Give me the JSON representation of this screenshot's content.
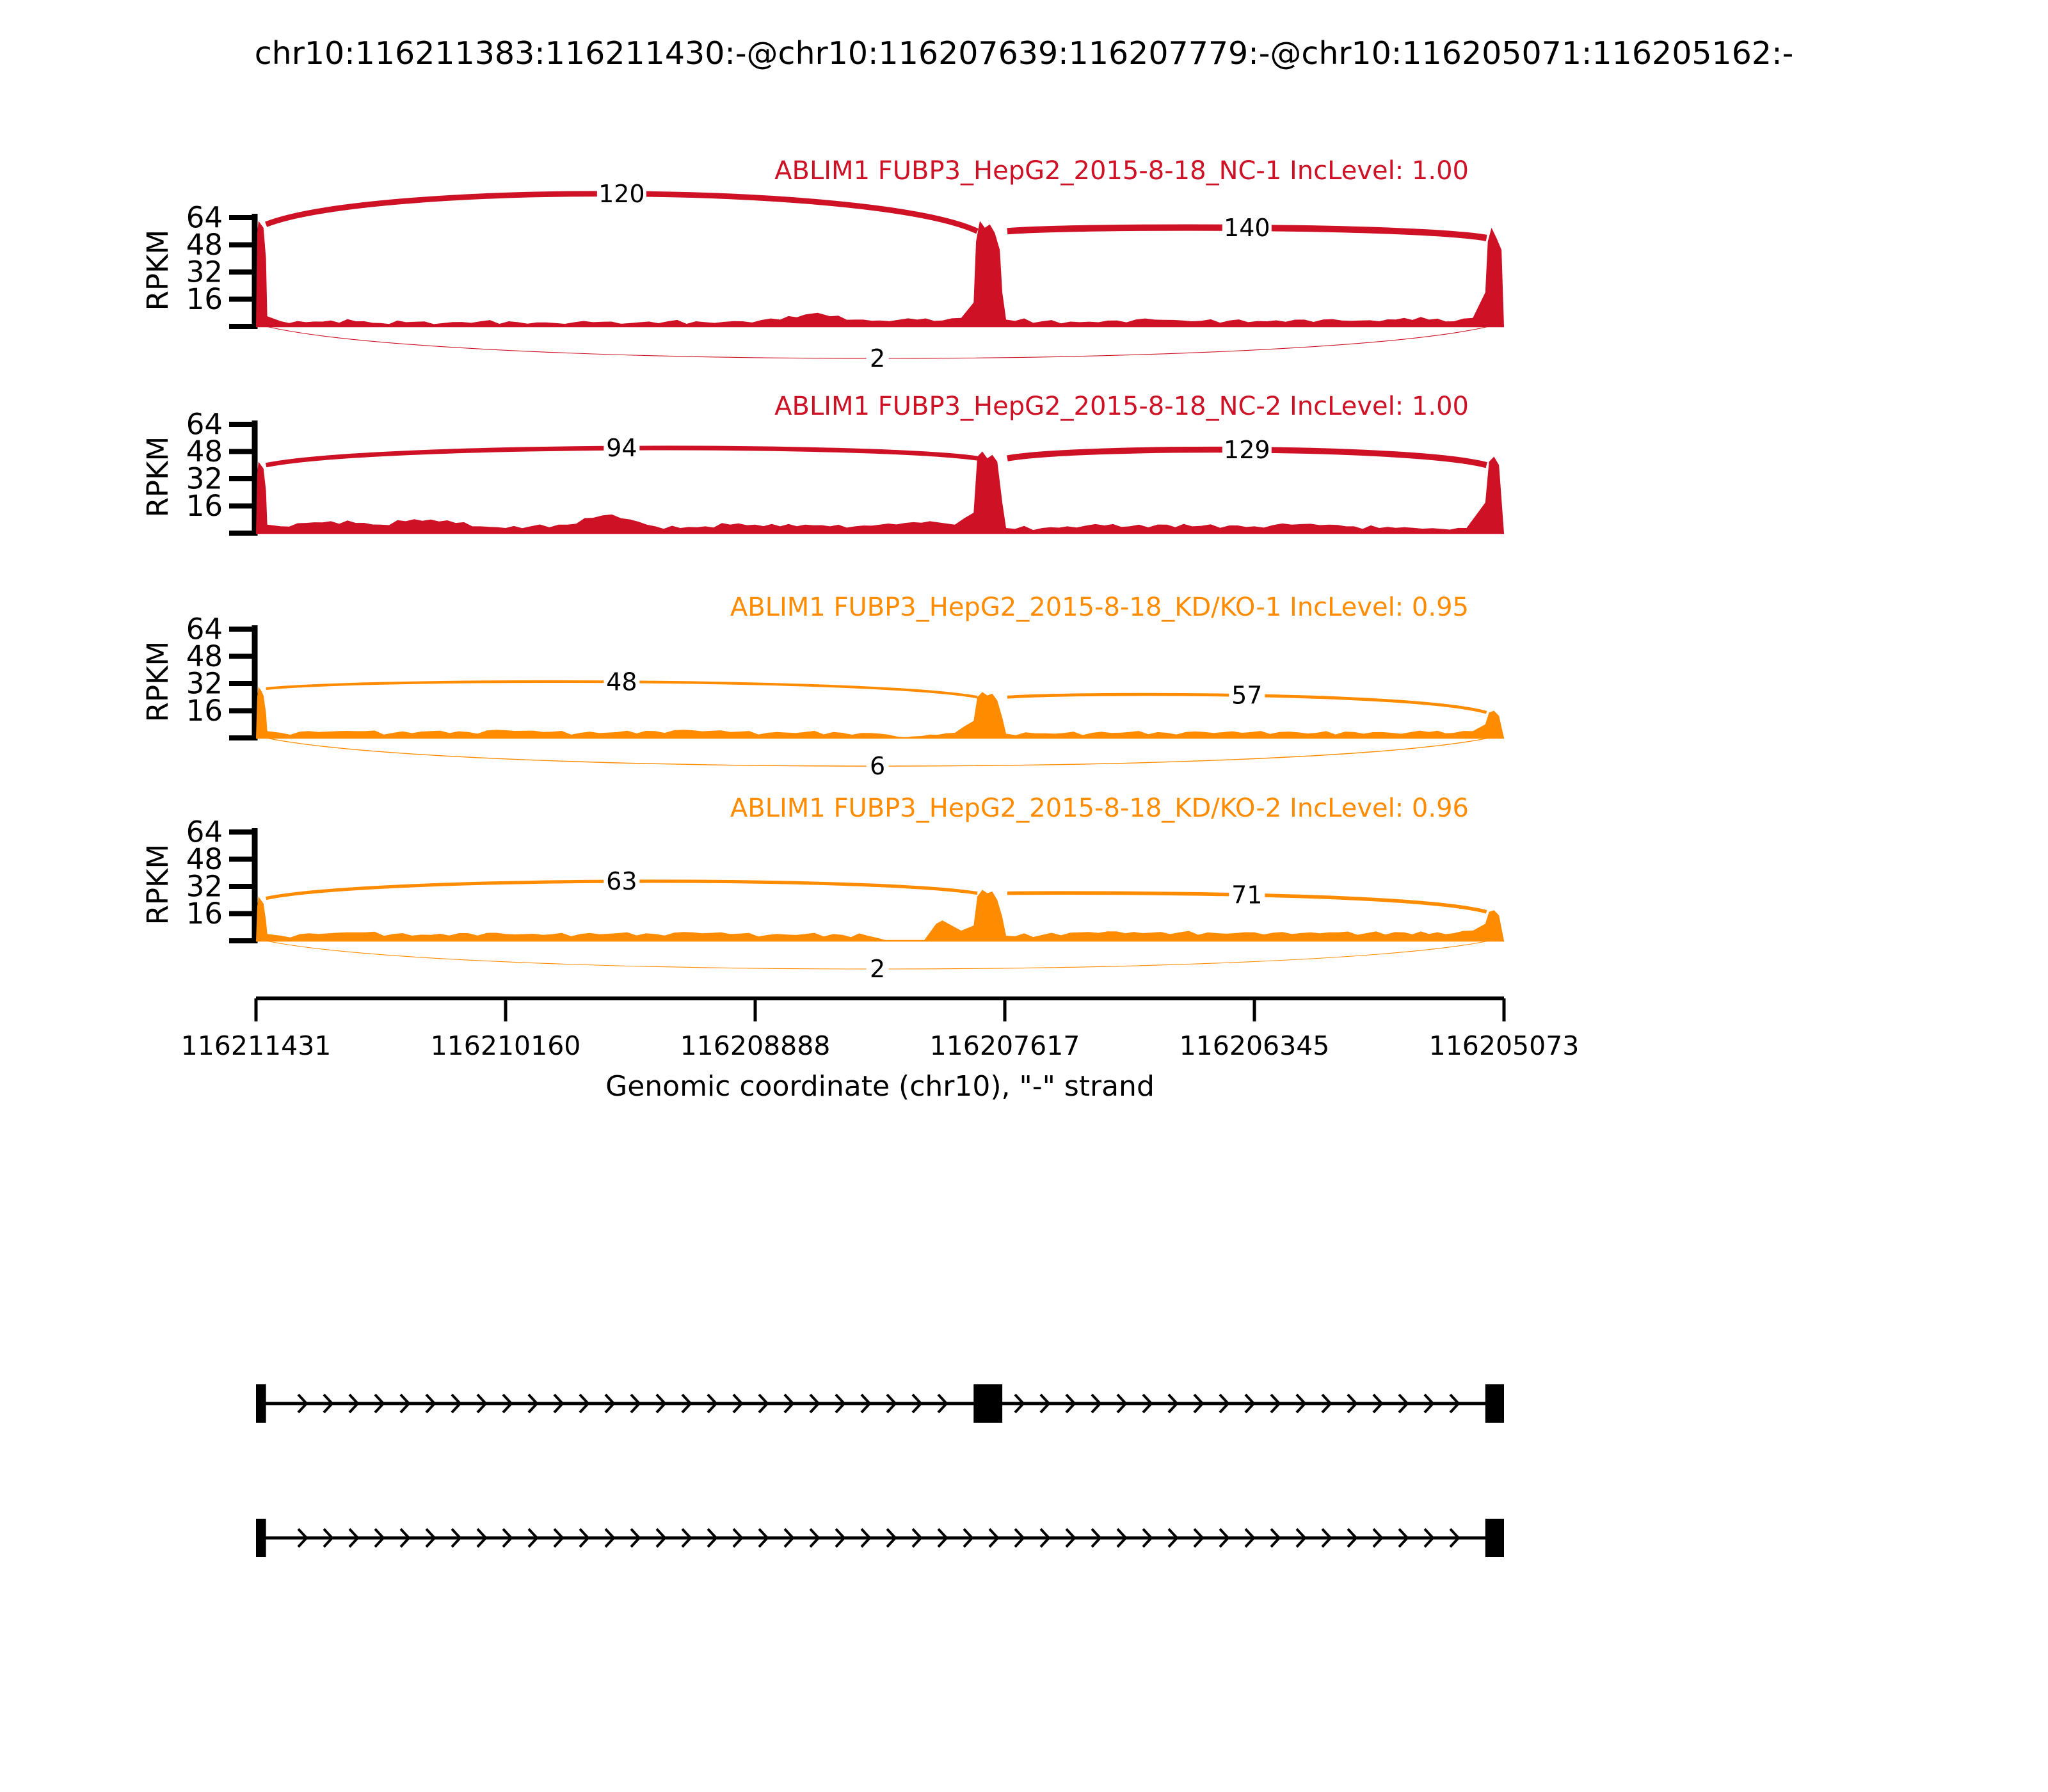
{
  "title": "chr10:116211383:116211430:-@chr10:116207639:116207779:-@chr10:116205071:116205162:-",
  "colors": {
    "nc": "#CE1124",
    "kd": "#FF8C00",
    "axis": "#000000",
    "gene": "#000000",
    "background": "#FFFFFF"
  },
  "y_axis": {
    "unit": "RPKM",
    "ticks": [
      16,
      32,
      48,
      64
    ],
    "max": 64
  },
  "x_axis": {
    "label": "Genomic coordinate (chr10), \"-\" strand",
    "ticks": [
      "116211431",
      "116210160",
      "116208888",
      "116207617",
      "116206345",
      "116205073"
    ]
  },
  "chart_data": {
    "type": "sashimi",
    "event_gene": "ABLIM1",
    "tracks": [
      {
        "label": "ABLIM1 FUBP3_HepG2_2015-8-18_NC-1 IncLevel: 1.00",
        "inc_level": "1.00",
        "color_key": "nc",
        "junctions": [
          {
            "from": 0.008,
            "to": 0.578,
            "count": 120,
            "side": "top",
            "apex": 78,
            "h1": 60,
            "h2": 56
          },
          {
            "from": 0.602,
            "to": 0.986,
            "count": 140,
            "side": "top",
            "apex": 58,
            "h1": 56,
            "h2": 52
          },
          {
            "from": 0.008,
            "to": 0.988,
            "count": 2,
            "side": "bottom",
            "dip": 50,
            "h1": 0,
            "h2": 0
          }
        ],
        "coverage": [
          [
            0,
            0
          ],
          [
            0.001,
            55
          ],
          [
            0.002,
            62
          ],
          [
            0.004,
            60
          ],
          [
            0.006,
            58
          ],
          [
            0.008,
            40
          ],
          [
            0.009,
            6
          ],
          [
            0.02,
            3
          ],
          [
            0.04,
            2.5
          ],
          [
            0.06,
            3.5
          ],
          [
            0.08,
            3
          ],
          [
            0.1,
            2
          ],
          [
            0.12,
            2.5
          ],
          [
            0.15,
            2
          ],
          [
            0.18,
            3
          ],
          [
            0.21,
            2.5
          ],
          [
            0.24,
            2
          ],
          [
            0.27,
            2.5
          ],
          [
            0.3,
            2
          ],
          [
            0.33,
            3
          ],
          [
            0.36,
            2.5
          ],
          [
            0.39,
            3
          ],
          [
            0.42,
            4
          ],
          [
            0.44,
            7
          ],
          [
            0.45,
            8
          ],
          [
            0.46,
            6
          ],
          [
            0.48,
            4
          ],
          [
            0.5,
            3.5
          ],
          [
            0.53,
            4
          ],
          [
            0.55,
            3.5
          ],
          [
            0.565,
            5
          ],
          [
            0.575,
            14
          ],
          [
            0.577,
            50
          ],
          [
            0.58,
            62
          ],
          [
            0.584,
            58
          ],
          [
            0.588,
            60
          ],
          [
            0.592,
            55
          ],
          [
            0.596,
            45
          ],
          [
            0.598,
            20
          ],
          [
            0.601,
            4
          ],
          [
            0.63,
            3
          ],
          [
            0.66,
            2.5
          ],
          [
            0.69,
            3.5
          ],
          [
            0.72,
            4
          ],
          [
            0.75,
            3
          ],
          [
            0.78,
            3.5
          ],
          [
            0.81,
            3
          ],
          [
            0.84,
            4
          ],
          [
            0.87,
            3.5
          ],
          [
            0.9,
            3
          ],
          [
            0.92,
            5
          ],
          [
            0.94,
            4
          ],
          [
            0.96,
            3
          ],
          [
            0.975,
            5
          ],
          [
            0.985,
            20
          ],
          [
            0.987,
            50
          ],
          [
            0.99,
            58
          ],
          [
            0.994,
            52
          ],
          [
            0.998,
            45
          ],
          [
            1,
            0
          ]
        ]
      },
      {
        "label": "ABLIM1 FUBP3_HepG2_2015-8-18_NC-2 IncLevel: 1.00",
        "inc_level": "1.00",
        "color_key": "nc",
        "junctions": [
          {
            "from": 0.008,
            "to": 0.578,
            "count": 94,
            "side": "top",
            "apex": 50,
            "h1": 40,
            "h2": 44
          },
          {
            "from": 0.602,
            "to": 0.986,
            "count": 129,
            "side": "top",
            "apex": 49,
            "h1": 44,
            "h2": 40
          }
        ],
        "coverage": [
          [
            0,
            0
          ],
          [
            0.001,
            35
          ],
          [
            0.002,
            42
          ],
          [
            0.004,
            40
          ],
          [
            0.006,
            38
          ],
          [
            0.008,
            25
          ],
          [
            0.009,
            5
          ],
          [
            0.02,
            4
          ],
          [
            0.04,
            6
          ],
          [
            0.06,
            7
          ],
          [
            0.08,
            6
          ],
          [
            0.1,
            5
          ],
          [
            0.12,
            7
          ],
          [
            0.14,
            8
          ],
          [
            0.16,
            6
          ],
          [
            0.18,
            4
          ],
          [
            0.2,
            3
          ],
          [
            0.22,
            4
          ],
          [
            0.25,
            5
          ],
          [
            0.27,
            9
          ],
          [
            0.285,
            11
          ],
          [
            0.3,
            8
          ],
          [
            0.32,
            4
          ],
          [
            0.34,
            3
          ],
          [
            0.36,
            4
          ],
          [
            0.38,
            5
          ],
          [
            0.4,
            5
          ],
          [
            0.42,
            4
          ],
          [
            0.44,
            5
          ],
          [
            0.46,
            4
          ],
          [
            0.48,
            4
          ],
          [
            0.5,
            5
          ],
          [
            0.52,
            6
          ],
          [
            0.54,
            7
          ],
          [
            0.55,
            6
          ],
          [
            0.56,
            5
          ],
          [
            0.575,
            12
          ],
          [
            0.578,
            45
          ],
          [
            0.582,
            48
          ],
          [
            0.586,
            44
          ],
          [
            0.59,
            46
          ],
          [
            0.594,
            42
          ],
          [
            0.598,
            18
          ],
          [
            0.601,
            3
          ],
          [
            0.63,
            3
          ],
          [
            0.65,
            4
          ],
          [
            0.68,
            4.5
          ],
          [
            0.7,
            4
          ],
          [
            0.73,
            5
          ],
          [
            0.75,
            4
          ],
          [
            0.78,
            4.5
          ],
          [
            0.8,
            4
          ],
          [
            0.83,
            5
          ],
          [
            0.86,
            5
          ],
          [
            0.88,
            4
          ],
          [
            0.9,
            3
          ],
          [
            0.92,
            3.5
          ],
          [
            0.95,
            2.5
          ],
          [
            0.97,
            3
          ],
          [
            0.985,
            18
          ],
          [
            0.988,
            42
          ],
          [
            0.992,
            45
          ],
          [
            0.996,
            40
          ],
          [
            1,
            0
          ]
        ]
      },
      {
        "label": "ABLIM1 FUBP3_HepG2_2015-8-18_KD/KO-1 IncLevel: 0.95",
        "inc_level": "0.95",
        "color_key": "kd",
        "junctions": [
          {
            "from": 0.008,
            "to": 0.578,
            "count": 48,
            "side": "top",
            "apex": 33,
            "h1": 29,
            "h2": 24
          },
          {
            "from": 0.602,
            "to": 0.986,
            "count": 57,
            "side": "top",
            "apex": 25,
            "h1": 24,
            "h2": 15
          },
          {
            "from": 0.008,
            "to": 0.988,
            "count": 6,
            "side": "bottom",
            "dip": 44,
            "h1": 0,
            "h2": 0
          }
        ],
        "coverage": [
          [
            0,
            0
          ],
          [
            0.001,
            24
          ],
          [
            0.002,
            30
          ],
          [
            0.004,
            28
          ],
          [
            0.006,
            25
          ],
          [
            0.008,
            15
          ],
          [
            0.009,
            4
          ],
          [
            0.02,
            3
          ],
          [
            0.05,
            3.5
          ],
          [
            0.08,
            4
          ],
          [
            0.11,
            3
          ],
          [
            0.14,
            4
          ],
          [
            0.17,
            3.5
          ],
          [
            0.2,
            4.5
          ],
          [
            0.23,
            3.5
          ],
          [
            0.26,
            3
          ],
          [
            0.29,
            3.5
          ],
          [
            0.32,
            4
          ],
          [
            0.35,
            4.5
          ],
          [
            0.38,
            3.5
          ],
          [
            0.41,
            3
          ],
          [
            0.44,
            3.5
          ],
          [
            0.47,
            3
          ],
          [
            0.5,
            2.5
          ],
          [
            0.52,
            0.3
          ],
          [
            0.54,
            2
          ],
          [
            0.56,
            3
          ],
          [
            0.575,
            10
          ],
          [
            0.578,
            24
          ],
          [
            0.582,
            27
          ],
          [
            0.586,
            25
          ],
          [
            0.59,
            26
          ],
          [
            0.594,
            22
          ],
          [
            0.598,
            12
          ],
          [
            0.601,
            2.5
          ],
          [
            0.64,
            2.5
          ],
          [
            0.67,
            3
          ],
          [
            0.7,
            3.5
          ],
          [
            0.73,
            3
          ],
          [
            0.76,
            3.5
          ],
          [
            0.79,
            3
          ],
          [
            0.82,
            3.5
          ],
          [
            0.85,
            3
          ],
          [
            0.88,
            3.5
          ],
          [
            0.91,
            3
          ],
          [
            0.94,
            3.5
          ],
          [
            0.96,
            3
          ],
          [
            0.975,
            4
          ],
          [
            0.985,
            8
          ],
          [
            0.988,
            15
          ],
          [
            0.992,
            16
          ],
          [
            0.996,
            13
          ],
          [
            1,
            0
          ]
        ]
      },
      {
        "label": "ABLIM1 FUBP3_HepG2_2015-8-18_KD/KO-2 IncLevel: 0.96",
        "inc_level": "0.96",
        "color_key": "kd",
        "junctions": [
          {
            "from": 0.008,
            "to": 0.578,
            "count": 63,
            "side": "top",
            "apex": 35,
            "h1": 25,
            "h2": 28
          },
          {
            "from": 0.602,
            "to": 0.986,
            "count": 71,
            "side": "top",
            "apex": 27,
            "h1": 28,
            "h2": 17
          },
          {
            "from": 0.008,
            "to": 0.988,
            "count": 2,
            "side": "bottom",
            "dip": 44,
            "h1": 0,
            "h2": 0
          }
        ],
        "coverage": [
          [
            0,
            0
          ],
          [
            0.001,
            20
          ],
          [
            0.002,
            26
          ],
          [
            0.004,
            24
          ],
          [
            0.006,
            22
          ],
          [
            0.008,
            12
          ],
          [
            0.009,
            4
          ],
          [
            0.02,
            3
          ],
          [
            0.05,
            4
          ],
          [
            0.08,
            5
          ],
          [
            0.11,
            4
          ],
          [
            0.14,
            3.5
          ],
          [
            0.17,
            4.5
          ],
          [
            0.2,
            4
          ],
          [
            0.23,
            3.5
          ],
          [
            0.26,
            4
          ],
          [
            0.29,
            4.5
          ],
          [
            0.32,
            4
          ],
          [
            0.35,
            5
          ],
          [
            0.38,
            4
          ],
          [
            0.41,
            3.5
          ],
          [
            0.44,
            4
          ],
          [
            0.47,
            3.5
          ],
          [
            0.49,
            3
          ],
          [
            0.505,
            0.3
          ],
          [
            0.52,
            0
          ],
          [
            0.535,
            0
          ],
          [
            0.545,
            10
          ],
          [
            0.55,
            12
          ],
          [
            0.56,
            8
          ],
          [
            0.565,
            6
          ],
          [
            0.575,
            9
          ],
          [
            0.578,
            26
          ],
          [
            0.582,
            30
          ],
          [
            0.586,
            28
          ],
          [
            0.59,
            29
          ],
          [
            0.594,
            24
          ],
          [
            0.598,
            14
          ],
          [
            0.601,
            3
          ],
          [
            0.63,
            3.5
          ],
          [
            0.66,
            5
          ],
          [
            0.69,
            5.5
          ],
          [
            0.71,
            4.5
          ],
          [
            0.74,
            5
          ],
          [
            0.77,
            4.5
          ],
          [
            0.8,
            5
          ],
          [
            0.83,
            4
          ],
          [
            0.86,
            5
          ],
          [
            0.89,
            4.5
          ],
          [
            0.92,
            5
          ],
          [
            0.94,
            4
          ],
          [
            0.96,
            4.5
          ],
          [
            0.975,
            6
          ],
          [
            0.985,
            10
          ],
          [
            0.988,
            17
          ],
          [
            0.992,
            18
          ],
          [
            0.996,
            15
          ],
          [
            1,
            0
          ]
        ]
      }
    ],
    "transcripts": [
      {
        "exons": [
          [
            0,
            0.008,
            60
          ],
          [
            0.575,
            0.598,
            60
          ],
          [
            0.985,
            1,
            60
          ]
        ]
      },
      {
        "exons": [
          [
            0,
            0.008,
            60
          ],
          [
            0.985,
            1,
            60
          ]
        ]
      }
    ]
  }
}
